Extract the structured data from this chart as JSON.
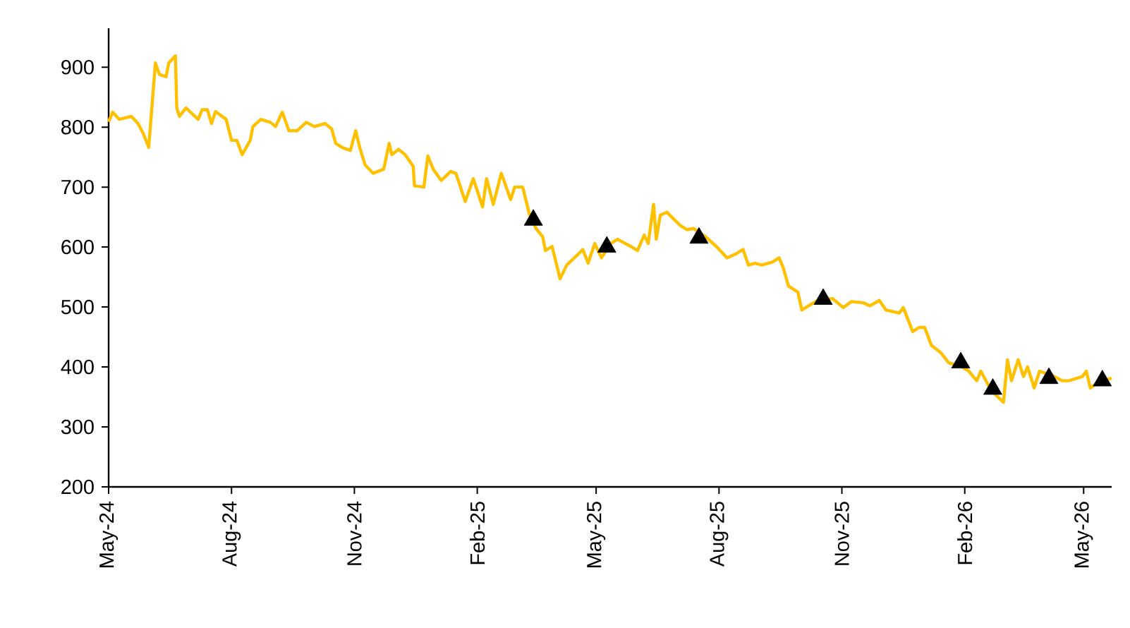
{
  "chart_data": {
    "type": "line",
    "xlim": [
      "2024-05-01",
      "2026-05-22"
    ],
    "ylim": [
      200,
      965
    ],
    "xticks": [
      {
        "value": "2024-05-01",
        "label": "May-24"
      },
      {
        "value": "2024-08-01",
        "label": "Aug-24"
      },
      {
        "value": "2024-11-01",
        "label": "Nov-24"
      },
      {
        "value": "2025-02-01",
        "label": "Feb-25"
      },
      {
        "value": "2025-05-01",
        "label": "May-25"
      },
      {
        "value": "2025-08-01",
        "label": "Aug-25"
      },
      {
        "value": "2025-11-01",
        "label": "Nov-25"
      },
      {
        "value": "2026-02-01",
        "label": "Feb-26"
      },
      {
        "value": "2026-05-01",
        "label": "May-26"
      }
    ],
    "yticks": [
      200,
      300,
      400,
      500,
      600,
      700,
      800,
      900
    ],
    "series": [
      {
        "color": "#ffc000",
        "marker": "none",
        "x": [
          "2024-05-01",
          "2024-05-04",
          "2024-05-09",
          "2024-05-18",
          "2024-05-23",
          "2024-05-27",
          "2024-05-31",
          "2024-06-05",
          "2024-06-08",
          "2024-06-13",
          "2024-06-15",
          "2024-06-20",
          "2024-06-21",
          "2024-06-23",
          "2024-06-28",
          "2024-07-07",
          "2024-07-10",
          "2024-07-14",
          "2024-07-17",
          "2024-07-20",
          "2024-07-28",
          "2024-08-01",
          "2024-08-05",
          "2024-08-09",
          "2024-08-15",
          "2024-08-17",
          "2024-08-23",
          "2024-08-30",
          "2024-09-03",
          "2024-09-08",
          "2024-09-13",
          "2024-09-19",
          "2024-09-26",
          "2024-10-02",
          "2024-10-10",
          "2024-10-15",
          "2024-10-18",
          "2024-10-23",
          "2024-10-29",
          "2024-11-02",
          "2024-11-05",
          "2024-11-09",
          "2024-11-15",
          "2024-11-23",
          "2024-11-27",
          "2024-11-29",
          "2024-12-04",
          "2024-12-09",
          "2024-12-15",
          "2024-12-16",
          "2024-12-23",
          "2024-12-26",
          "2024-12-30",
          "2025-01-05",
          "2025-01-12",
          "2025-01-16",
          "2025-01-23",
          "2025-01-29",
          "2025-02-05",
          "2025-02-08",
          "2025-02-13",
          "2025-02-19",
          "2025-02-26",
          "2025-03-01",
          "2025-03-07",
          "2025-03-12",
          "2025-03-17",
          "2025-03-22",
          "2025-03-24",
          "2025-03-29",
          "2025-04-04",
          "2025-04-09",
          "2025-04-18",
          "2025-04-21",
          "2025-04-25",
          "2025-04-30",
          "2025-05-05",
          "2025-05-12",
          "2025-05-17",
          "2025-05-27",
          "2025-06-01",
          "2025-06-06",
          "2025-06-09",
          "2025-06-13",
          "2025-06-15",
          "2025-06-18",
          "2025-06-23",
          "2025-07-03",
          "2025-07-08",
          "2025-07-13",
          "2025-07-22",
          "2025-07-30",
          "2025-08-07",
          "2025-08-14",
          "2025-08-19",
          "2025-08-23",
          "2025-08-28",
          "2025-09-02",
          "2025-09-10",
          "2025-09-15",
          "2025-09-18",
          "2025-09-22",
          "2025-09-29",
          "2025-10-02",
          "2025-10-07",
          "2025-10-14",
          "2025-10-25",
          "2025-11-02",
          "2025-11-08",
          "2025-11-17",
          "2025-11-22",
          "2025-11-29",
          "2025-12-04",
          "2025-12-14",
          "2025-12-17",
          "2025-12-24",
          "2025-12-29",
          "2026-01-02",
          "2026-01-07",
          "2026-01-14",
          "2026-01-20",
          "2026-01-30",
          "2026-02-04",
          "2026-02-10",
          "2026-02-13",
          "2026-02-21",
          "2026-03-02",
          "2026-03-05",
          "2026-03-08",
          "2026-03-13",
          "2026-03-17",
          "2026-03-20",
          "2026-03-25",
          "2026-03-29",
          "2026-04-09",
          "2026-04-15",
          "2026-04-20",
          "2026-04-30",
          "2026-05-03",
          "2026-05-06",
          "2026-05-14",
          "2026-05-22"
        ],
        "values": [
          809,
          825,
          813,
          818,
          806,
          789,
          766,
          907,
          888,
          884,
          907,
          919,
          832,
          818,
          832,
          813,
          829,
          829,
          806,
          826,
          813,
          778,
          778,
          754,
          778,
          801,
          813,
          808,
          801,
          825,
          794,
          794,
          808,
          801,
          806,
          797,
          773,
          766,
          761,
          794,
          766,
          737,
          723,
          730,
          773,
          754,
          763,
          754,
          735,
          702,
          700,
          752,
          730,
          711,
          726,
          723,
          676,
          714,
          667,
          714,
          671,
          723,
          679,
          700,
          700,
          655,
          631,
          617,
          594,
          601,
          547,
          570,
          589,
          596,
          573,
          606,
          582,
          606,
          613,
          601,
          594,
          620,
          606,
          671,
          613,
          653,
          658,
          636,
          629,
          631,
          617,
          601,
          582,
          589,
          596,
          570,
          573,
          570,
          575,
          582,
          566,
          535,
          525,
          495,
          502,
          511,
          514,
          499,
          509,
          507,
          502,
          511,
          495,
          490,
          499,
          459,
          466,
          466,
          436,
          424,
          407,
          400,
          393,
          377,
          393,
          360,
          341,
          412,
          377,
          412,
          384,
          400,
          365,
          393,
          384,
          377,
          377,
          384,
          393,
          365,
          377,
          381
        ]
      },
      {
        "type": "scatter",
        "color": "#000000",
        "marker": "triangle",
        "x": [
          "2025-03-15",
          "2025-05-09",
          "2025-07-17",
          "2025-10-18",
          "2026-01-29",
          "2026-02-22",
          "2026-04-05",
          "2026-05-15"
        ],
        "values": [
          645,
          600,
          615,
          513,
          407,
          363,
          381,
          377
        ]
      }
    ]
  }
}
